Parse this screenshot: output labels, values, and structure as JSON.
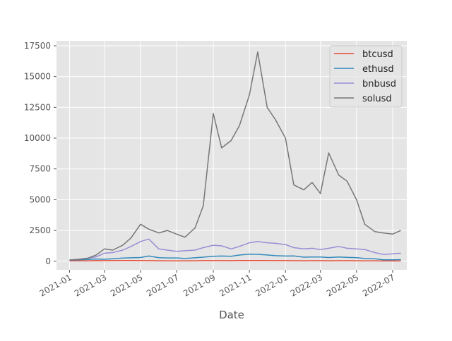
{
  "chart_data": {
    "type": "line",
    "title": "",
    "xlabel": "Date",
    "ylabel": "",
    "x_tick_labels": [
      "2021-01",
      "2021-03",
      "2021-05",
      "2021-07",
      "2021-09",
      "2021-11",
      "2022-01",
      "2022-03",
      "2022-05",
      "2022-07"
    ],
    "x_tick_dates": [
      "2021-01-01",
      "2021-03-01",
      "2021-05-01",
      "2021-07-01",
      "2021-09-01",
      "2021-11-01",
      "2022-01-01",
      "2022-03-01",
      "2022-05-01",
      "2022-07-01"
    ],
    "xlim": [
      "2020-12-10",
      "2022-07-25"
    ],
    "y_tick_labels": [
      "0",
      "2500",
      "5000",
      "7500",
      "10000",
      "12500",
      "15000",
      "17500"
    ],
    "ylim": [
      -700,
      17900
    ],
    "grid": true,
    "legend_position": "top-right",
    "x": [
      "2021-01-01",
      "2021-01-15",
      "2021-02-01",
      "2021-02-15",
      "2021-03-01",
      "2021-03-15",
      "2021-04-01",
      "2021-04-15",
      "2021-05-01",
      "2021-05-15",
      "2021-06-01",
      "2021-06-15",
      "2021-07-01",
      "2021-07-15",
      "2021-08-01",
      "2021-08-15",
      "2021-09-01",
      "2021-09-15",
      "2021-10-01",
      "2021-10-15",
      "2021-11-01",
      "2021-11-15",
      "2021-12-01",
      "2021-12-15",
      "2022-01-01",
      "2022-01-15",
      "2022-02-01",
      "2022-02-15",
      "2022-03-01",
      "2022-03-15",
      "2022-04-01",
      "2022-04-15",
      "2022-05-01",
      "2022-05-15",
      "2022-06-01",
      "2022-06-15",
      "2022-07-01",
      "2022-07-15"
    ],
    "series": [
      {
        "name": "btcusd",
        "color": "#E24A33",
        "values": [
          30,
          38,
          34,
          48,
          45,
          56,
          59,
          63,
          57,
          48,
          37,
          35,
          34,
          32,
          40,
          47,
          47,
          48,
          44,
          60,
          61,
          63,
          57,
          50,
          47,
          43,
          38,
          42,
          44,
          41,
          46,
          42,
          38,
          30,
          31,
          22,
          20,
          21
        ]
      },
      {
        "name": "ethusd",
        "color": "#348ABD",
        "values": [
          80,
          120,
          140,
          180,
          160,
          200,
          260,
          280,
          300,
          420,
          290,
          270,
          270,
          220,
          280,
          330,
          400,
          420,
          400,
          500,
          570,
          560,
          510,
          450,
          420,
          430,
          330,
          350,
          340,
          300,
          350,
          320,
          290,
          220,
          190,
          120,
          120,
          130
        ]
      },
      {
        "name": "bnbusd",
        "color": "#988ED5",
        "values": [
          100,
          150,
          240,
          360,
          650,
          700,
          900,
          1200,
          1600,
          1800,
          1000,
          900,
          800,
          850,
          900,
          1100,
          1300,
          1250,
          1000,
          1200,
          1500,
          1600,
          1500,
          1450,
          1350,
          1100,
          1000,
          1050,
          950,
          1050,
          1200,
          1050,
          1000,
          950,
          700,
          550,
          600,
          650
        ]
      },
      {
        "name": "solusd",
        "color": "#777777",
        "values": [
          100,
          150,
          250,
          500,
          1000,
          900,
          1300,
          1900,
          3000,
          2600,
          2300,
          2500,
          2200,
          1950,
          2700,
          4500,
          12000,
          9200,
          9800,
          11000,
          13500,
          17000,
          12500,
          11500,
          10000,
          6200,
          5800,
          6400,
          5500,
          8800,
          7000,
          6500,
          5000,
          3000,
          2400,
          2300,
          2200,
          2500
        ]
      }
    ]
  }
}
